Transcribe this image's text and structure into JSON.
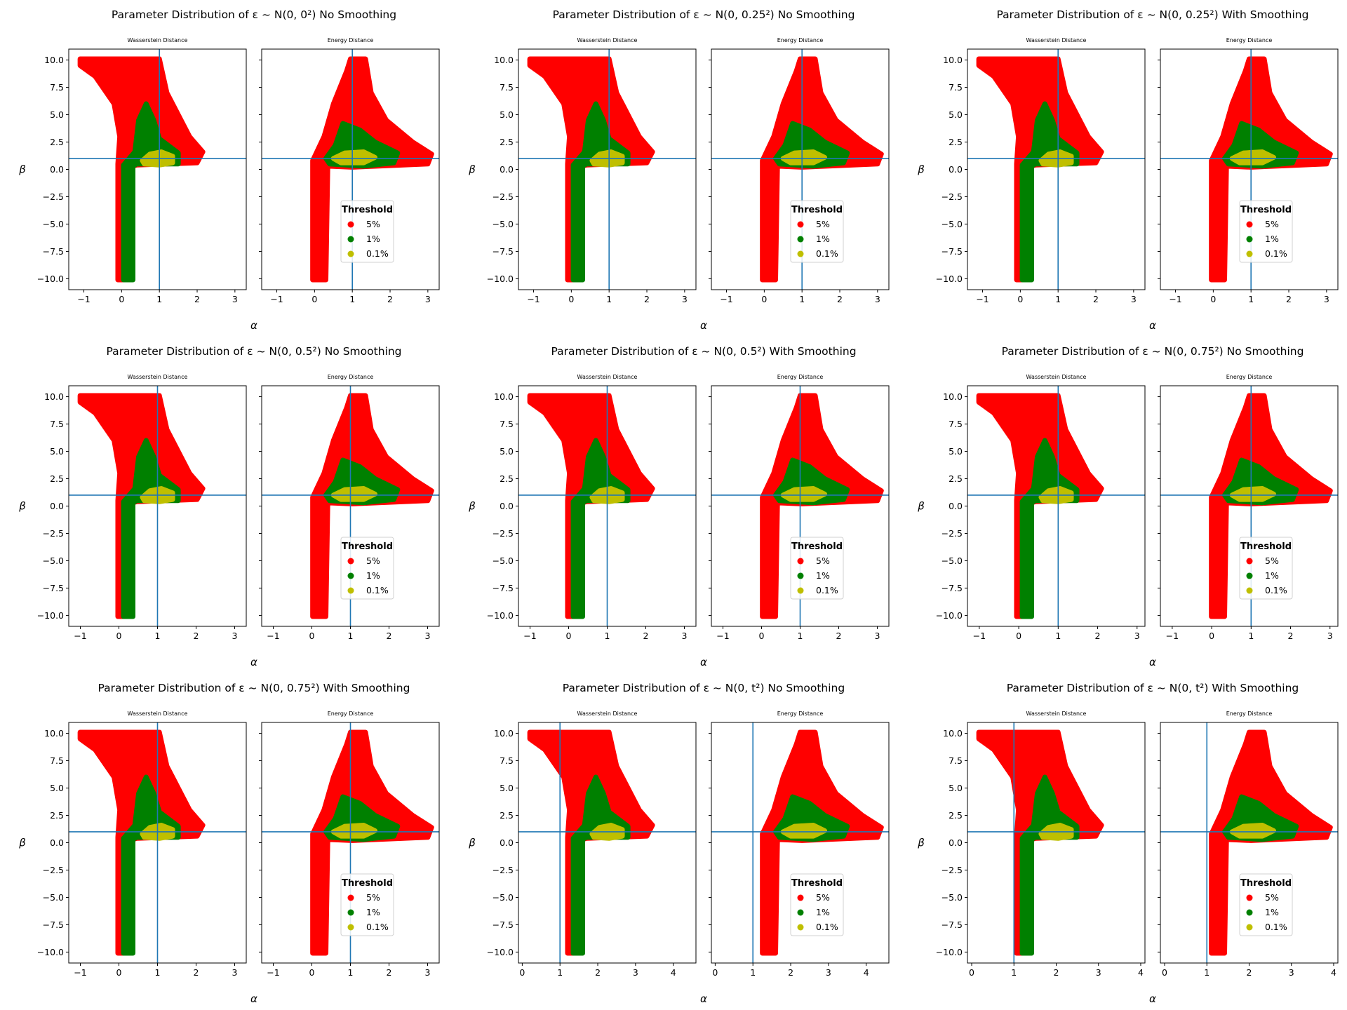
{
  "figure": {
    "panels": [
      {
        "title": "Parameter Distribution of ε ~ N(0, 0²) No Smoothing",
        "xmin": -1.4,
        "xmax": 3.3,
        "xticks": [
          -1,
          0,
          1,
          2,
          3
        ],
        "xcenter": 1.0,
        "smooth": false,
        "noise": 0
      },
      {
        "title": "Parameter Distribution of ε ~ N(0, 0.25²) No Smoothing",
        "xmin": -1.4,
        "xmax": 3.3,
        "xticks": [
          -1,
          0,
          1,
          2,
          3
        ],
        "xcenter": 1.0,
        "smooth": false,
        "noise": 1
      },
      {
        "title": "Parameter Distribution of ε ~ N(0, 0.25²) With Smoothing",
        "xmin": -1.4,
        "xmax": 3.3,
        "xticks": [
          -1,
          0,
          1,
          2,
          3
        ],
        "xcenter": 1.0,
        "smooth": true,
        "noise": 1
      },
      {
        "title": "Parameter Distribution of ε ~ N(0, 0.5²) No Smoothing",
        "xmin": -1.3,
        "xmax": 3.3,
        "xticks": [
          -1,
          0,
          1,
          2,
          3
        ],
        "xcenter": 1.0,
        "smooth": false,
        "noise": 2
      },
      {
        "title": "Parameter Distribution of ε ~ N(0, 0.5²) With Smoothing",
        "xmin": -1.3,
        "xmax": 3.3,
        "xticks": [
          -1,
          0,
          1,
          2,
          3
        ],
        "xcenter": 1.0,
        "smooth": true,
        "noise": 2
      },
      {
        "title": "Parameter Distribution of ε ~ N(0, 0.75²) No Smoothing",
        "xmin": -1.3,
        "xmax": 3.2,
        "xticks": [
          -1,
          0,
          1,
          2,
          3
        ],
        "xcenter": 1.0,
        "smooth": false,
        "noise": 3
      },
      {
        "title": "Parameter Distribution of ε ~ N(0, 0.75²) With Smoothing",
        "xmin": -1.3,
        "xmax": 3.3,
        "xticks": [
          -1,
          0,
          1,
          2,
          3
        ],
        "xcenter": 1.0,
        "smooth": true,
        "noise": 3
      },
      {
        "title": "Parameter Distribution of ε ~ N(0, t²) No Smoothing",
        "xmin": -0.1,
        "xmax": 4.6,
        "xticks": [
          0,
          1,
          2,
          3,
          4
        ],
        "xcenter": 1.0,
        "smooth": false,
        "noise": 4
      },
      {
        "title": "Parameter Distribution of ε ~ N(0, t²) With Smoothing",
        "xmin": -0.1,
        "xmax": 4.1,
        "xticks": [
          0,
          1,
          2,
          3,
          4
        ],
        "xcenter": 1.0,
        "smooth": true,
        "noise": 4
      }
    ],
    "subplot_titles": [
      "Wasserstein Distance",
      "Energy Distance"
    ],
    "xlabel": "α",
    "ylabel": "β",
    "yticks": [
      -10.0,
      -7.5,
      -5.0,
      -2.5,
      0.0,
      2.5,
      5.0,
      7.5,
      10.0
    ],
    "ylim": [
      -11.0,
      11.0
    ],
    "ref_lines": {
      "alpha": 1.0,
      "beta": 1.0
    },
    "legend": {
      "title": "Threshold",
      "entries": [
        {
          "label": "5%",
          "color": "#ff0000"
        },
        {
          "label": "1%",
          "color": "#008000"
        },
        {
          "label": "0.1%",
          "color": "#bfbf00"
        }
      ],
      "placement": "lower-right of Energy Distance subplot"
    },
    "colors": {
      "ref_line": "#1f77b4",
      "region_5": "#ff0000",
      "region_1": "#008000",
      "region_01": "#bfbf00"
    }
  },
  "chart_data": {
    "type": "scatter",
    "description_note": "",
    "x_label": "α",
    "y_label": "β",
    "ylim": [
      -11,
      11
    ],
    "reference_point": {
      "alpha": 1.0,
      "beta": 1.0
    },
    "series": [
      {
        "name": "5%"
      },
      {
        "name": "1%"
      },
      {
        "name": "0.1%"
      }
    ],
    "regions": {
      "wasserstein": {
        "r5": [
          [
            -1.1,
            10.1
          ],
          [
            1.0,
            10.1
          ],
          [
            1.2,
            7
          ],
          [
            1.8,
            3
          ],
          [
            2.15,
            1.6
          ],
          [
            2.0,
            0.6
          ],
          [
            0.4,
            0.4
          ],
          [
            0.2,
            0.2
          ],
          [
            0.2,
            -10.1
          ],
          [
            -0.1,
            -10.1
          ],
          [
            -0.1,
            0.5
          ],
          [
            -0.05,
            3
          ],
          [
            -0.2,
            6
          ],
          [
            -0.7,
            8.5
          ],
          [
            -1.1,
            9.5
          ]
        ],
        "r1": [
          [
            0.45,
            4.5
          ],
          [
            0.65,
            6
          ],
          [
            0.85,
            4.5
          ],
          [
            1.0,
            2.8
          ],
          [
            1.5,
            1.5
          ],
          [
            1.5,
            0.5
          ],
          [
            0.4,
            0.5
          ],
          [
            0.3,
            0.3
          ],
          [
            0.3,
            -10.1
          ],
          [
            0.05,
            -10.1
          ],
          [
            0.05,
            0.4
          ],
          [
            0.2,
            1.0
          ],
          [
            0.35,
            1.6
          ]
        ],
        "r01": [
          [
            0.55,
            0.8
          ],
          [
            0.75,
            1.4
          ],
          [
            1.05,
            1.6
          ],
          [
            1.35,
            1.2
          ],
          [
            1.35,
            0.6
          ],
          [
            1.0,
            0.4
          ],
          [
            0.6,
            0.5
          ]
        ]
      },
      "energy": {
        "r5": [
          [
            0.25,
            3
          ],
          [
            0.5,
            6
          ],
          [
            0.85,
            9
          ],
          [
            0.95,
            10.1
          ],
          [
            1.35,
            10.1
          ],
          [
            1.5,
            7
          ],
          [
            1.9,
            4.5
          ],
          [
            2.6,
            2.5
          ],
          [
            3.1,
            1.4
          ],
          [
            3.0,
            0.5
          ],
          [
            1.0,
            0.2
          ],
          [
            0.35,
            0.3
          ],
          [
            0.3,
            -10.1
          ],
          [
            -0.05,
            -10.1
          ],
          [
            -0.05,
            0.8
          ]
        ],
        "r1": [
          [
            0.3,
            1.0
          ],
          [
            0.55,
            2.2
          ],
          [
            0.75,
            4.2
          ],
          [
            1.2,
            3.6
          ],
          [
            1.6,
            2.5
          ],
          [
            2.2,
            1.5
          ],
          [
            2.1,
            0.6
          ],
          [
            1.3,
            0.3
          ],
          [
            0.4,
            0.5
          ]
        ],
        "r01": [
          [
            0.5,
            1.0
          ],
          [
            0.8,
            1.5
          ],
          [
            1.3,
            1.6
          ],
          [
            1.6,
            1.1
          ],
          [
            1.3,
            0.6
          ],
          [
            0.7,
            0.6
          ]
        ]
      }
    }
  }
}
